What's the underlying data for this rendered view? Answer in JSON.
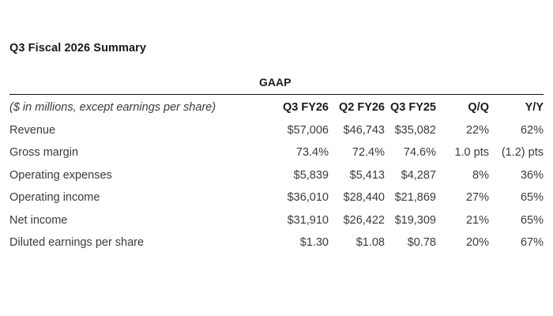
{
  "title": "Q3 Fiscal 2026 Summary",
  "section_label": "GAAP",
  "table": {
    "label_header": "($ in millions, except earnings per share)",
    "columns": [
      "Q3 FY26",
      "Q2 FY26",
      "Q3 FY25",
      "Q/Q",
      "Y/Y"
    ],
    "rows": [
      {
        "label": "Revenue",
        "values": [
          "$57,006",
          "$46,743",
          "$35,082",
          "22%",
          "62%"
        ]
      },
      {
        "label": "Gross margin",
        "values": [
          "73.4%",
          "72.4%",
          "74.6%",
          "1.0 pts",
          "(1.2) pts"
        ]
      },
      {
        "label": "Operating expenses",
        "values": [
          "$5,839",
          "$5,413",
          "$4,287",
          "8%",
          "36%"
        ]
      },
      {
        "label": "Operating income",
        "values": [
          "$36,010",
          "$28,440",
          "$21,869",
          "27%",
          "65%"
        ]
      },
      {
        "label": "Net income",
        "values": [
          "$31,910",
          "$26,422",
          "$19,309",
          "21%",
          "65%"
        ]
      },
      {
        "label": "Diluted earnings per share",
        "values": [
          "$1.30",
          "$1.08",
          "$0.78",
          "20%",
          "67%"
        ]
      }
    ]
  }
}
